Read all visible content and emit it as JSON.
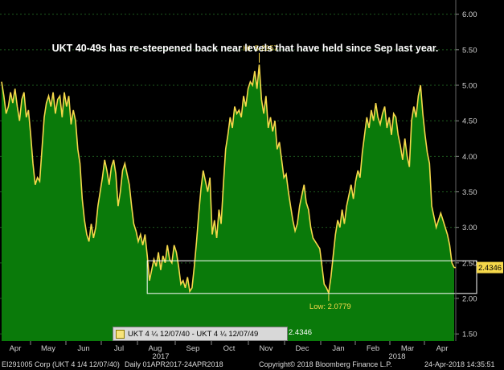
{
  "chart_data": {
    "type": "area",
    "title": "UKT 40-49s has re-steepened back near levels that have held since Sep last year.",
    "ylim": [
      1.4,
      6.2
    ],
    "yticks": [
      "6.00",
      "5.50",
      "5.00",
      "4.50",
      "4.00",
      "3.50",
      "3.00",
      "2.50",
      "2.00",
      "1.50"
    ],
    "ytick_values": [
      6.0,
      5.5,
      5.0,
      4.5,
      4.0,
      3.5,
      3.0,
      2.5,
      2.0,
      1.5
    ],
    "month_labels": [
      "Apr",
      "May",
      "Jun",
      "Jul",
      "Aug",
      "Sep",
      "Oct",
      "Nov",
      "Dec",
      "Jan",
      "Feb",
      "Mar",
      "Apr"
    ],
    "year_labels": [
      "2017",
      "2018"
    ],
    "series": [
      {
        "name": "UKT 4 ¼ 12/07/40 - UKT 4 ¼ 12/07/49",
        "values": [
          5.05,
          4.85,
          4.6,
          4.7,
          4.9,
          4.75,
          4.95,
          4.7,
          4.5,
          4.8,
          4.9,
          4.55,
          4.65,
          4.3,
          3.9,
          3.6,
          3.7,
          3.65,
          4.1,
          4.55,
          4.75,
          4.85,
          4.7,
          4.9,
          4.6,
          4.8,
          4.85,
          4.55,
          4.9,
          4.7,
          4.85,
          4.45,
          4.65,
          4.5,
          4.1,
          3.9,
          3.4,
          3.1,
          2.9,
          2.8,
          3.05,
          2.85,
          3.0,
          3.3,
          3.5,
          3.7,
          3.95,
          3.8,
          3.6,
          3.85,
          3.95,
          3.75,
          3.3,
          3.5,
          3.8,
          3.9,
          3.75,
          3.6,
          3.3,
          3.05,
          2.95,
          2.8,
          2.9,
          2.75,
          2.9,
          2.6,
          2.25,
          2.4,
          2.55,
          2.45,
          2.65,
          2.4,
          2.6,
          2.5,
          2.75,
          2.55,
          2.5,
          2.75,
          2.65,
          2.45,
          2.2,
          2.25,
          2.15,
          2.3,
          2.1,
          2.15,
          2.45,
          2.8,
          3.2,
          3.55,
          3.8,
          3.65,
          3.5,
          3.7,
          2.9,
          3.1,
          2.85,
          3.25,
          3.05,
          3.6,
          4.1,
          4.3,
          4.55,
          4.4,
          4.7,
          4.6,
          4.65,
          4.55,
          4.85,
          4.7,
          4.95,
          5.05,
          5.0,
          5.2,
          4.95,
          5.29,
          4.8,
          4.6,
          4.85,
          4.4,
          4.55,
          4.35,
          4.5,
          4.1,
          4.2,
          3.95,
          3.7,
          3.75,
          3.5,
          3.3,
          3.1,
          2.95,
          3.05,
          3.3,
          3.45,
          3.6,
          3.35,
          3.25,
          3.0,
          2.85,
          2.8,
          2.75,
          2.7,
          2.45,
          2.2,
          2.15,
          2.0779,
          2.3,
          2.6,
          2.9,
          3.1,
          3.0,
          3.25,
          3.05,
          3.3,
          3.45,
          3.6,
          3.4,
          3.65,
          3.8,
          3.7,
          4.05,
          4.3,
          4.55,
          4.4,
          4.65,
          4.5,
          4.75,
          4.55,
          4.45,
          4.6,
          4.7,
          4.4,
          4.55,
          4.3,
          4.6,
          4.55,
          4.3,
          4.15,
          3.95,
          4.25,
          4.0,
          3.85,
          4.5,
          4.7,
          4.55,
          4.85,
          5.0,
          4.6,
          4.3,
          4.05,
          3.9,
          3.3,
          3.15,
          3.0,
          3.1,
          3.2,
          3.1,
          3.0,
          2.9,
          2.75,
          2.5,
          2.4346
        ]
      }
    ],
    "last_value": "2.4346",
    "high_label": "Hi: 5.2957",
    "high_value": 5.2957,
    "low_label": "Low: 2.0779",
    "low_value": 2.0779,
    "range_box": [
      2.07,
      2.53
    ],
    "legend_text": "UKT 4 ¼ 12/07/40 - UKT 4 ¼ 12/07/49",
    "legend_value": "2.4346",
    "colors": {
      "fill": "#0a7a0a",
      "line": "#f5d84a",
      "grid": "#1e5a1e",
      "value_tag": "#f5d84a"
    }
  },
  "footer": {
    "ticker": "EI291005 Corp (UKT 4 1/4 12/07/40)",
    "range": "Daily 01APR2017-24APR2018",
    "copyright": "Copyright© 2018 Bloomberg Finance L.P.",
    "timestamp": "24-Apr-2018 14:35:51"
  }
}
